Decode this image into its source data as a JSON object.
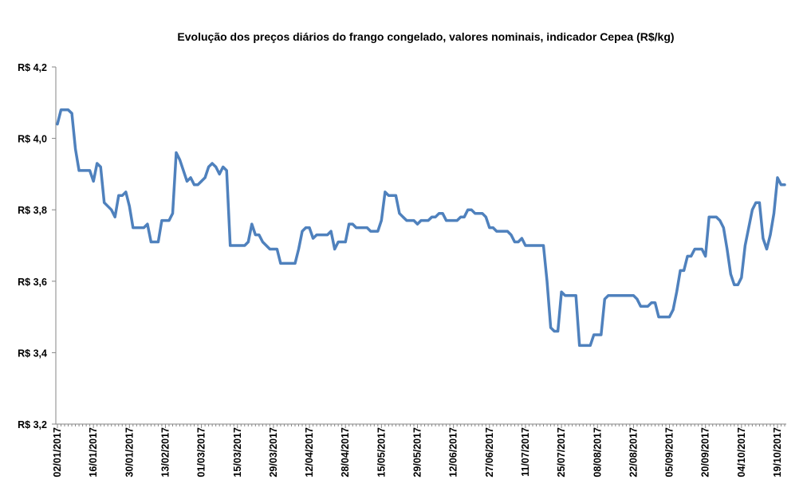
{
  "chart_data": {
    "type": "line",
    "title": "Evolução dos preços diários do frango congelado, valores nominais, indicador Cepea (R$/kg)",
    "xlabel": "",
    "ylabel": "",
    "ylim": [
      3.2,
      4.2
    ],
    "yticks": [
      "R$ 3,2",
      "R$ 3,4",
      "R$ 3,6",
      "R$ 3,8",
      "R$ 4,0",
      "R$ 4,2"
    ],
    "ytick_values": [
      3.2,
      3.4,
      3.6,
      3.8,
      4.0,
      4.2
    ],
    "xticks": [
      "02/01/2017",
      "16/01/2017",
      "30/01/2017",
      "13/02/2017",
      "01/03/2017",
      "15/03/2017",
      "29/03/2017",
      "12/04/2017",
      "28/04/2017",
      "15/05/2017",
      "29/05/2017",
      "12/06/2017",
      "27/06/2017",
      "11/07/2017",
      "25/07/2017",
      "08/08/2017",
      "22/08/2017",
      "05/09/2017",
      "20/09/2017",
      "04/10/2017",
      "19/10/2017"
    ],
    "xtick_every_n_points": 10,
    "x_note": "x = trading-day index from 02/01/2017",
    "grid": false,
    "legend": "none",
    "color": "#4f81bd",
    "series": [
      {
        "name": "Frango congelado (R$/kg)",
        "points": [
          [
            0,
            4.04
          ],
          [
            1,
            4.08
          ],
          [
            3,
            4.08
          ],
          [
            4,
            4.07
          ],
          [
            5,
            3.97
          ],
          [
            6,
            3.91
          ],
          [
            9,
            3.91
          ],
          [
            10,
            3.88
          ],
          [
            11,
            3.93
          ],
          [
            12,
            3.92
          ],
          [
            13,
            3.82
          ],
          [
            15,
            3.8
          ],
          [
            16,
            3.78
          ],
          [
            17,
            3.84
          ],
          [
            18,
            3.84
          ],
          [
            19,
            3.85
          ],
          [
            20,
            3.81
          ],
          [
            21,
            3.75
          ],
          [
            24,
            3.75
          ],
          [
            25,
            3.76
          ],
          [
            26,
            3.71
          ],
          [
            28,
            3.71
          ],
          [
            29,
            3.77
          ],
          [
            31,
            3.77
          ],
          [
            32,
            3.79
          ],
          [
            33,
            3.96
          ],
          [
            34,
            3.94
          ],
          [
            36,
            3.88
          ],
          [
            37,
            3.89
          ],
          [
            38,
            3.87
          ],
          [
            39,
            3.87
          ],
          [
            41,
            3.89
          ],
          [
            42,
            3.92
          ],
          [
            43,
            3.93
          ],
          [
            44,
            3.92
          ],
          [
            45,
            3.9
          ],
          [
            46,
            3.92
          ],
          [
            47,
            3.91
          ],
          [
            48,
            3.7
          ],
          [
            52,
            3.7
          ],
          [
            53,
            3.71
          ],
          [
            54,
            3.76
          ],
          [
            55,
            3.73
          ],
          [
            56,
            3.73
          ],
          [
            57,
            3.71
          ],
          [
            58,
            3.7
          ],
          [
            59,
            3.69
          ],
          [
            61,
            3.69
          ],
          [
            62,
            3.65
          ],
          [
            66,
            3.65
          ],
          [
            67,
            3.69
          ],
          [
            68,
            3.74
          ],
          [
            69,
            3.75
          ],
          [
            70,
            3.75
          ],
          [
            71,
            3.72
          ],
          [
            72,
            3.73
          ],
          [
            75,
            3.73
          ],
          [
            76,
            3.74
          ],
          [
            77,
            3.69
          ],
          [
            78,
            3.71
          ],
          [
            80,
            3.71
          ],
          [
            81,
            3.76
          ],
          [
            82,
            3.76
          ],
          [
            83,
            3.75
          ],
          [
            86,
            3.75
          ],
          [
            87,
            3.74
          ],
          [
            89,
            3.74
          ],
          [
            90,
            3.77
          ],
          [
            91,
            3.85
          ],
          [
            92,
            3.84
          ],
          [
            94,
            3.84
          ],
          [
            95,
            3.79
          ],
          [
            96,
            3.78
          ],
          [
            97,
            3.77
          ],
          [
            99,
            3.77
          ],
          [
            100,
            3.76
          ],
          [
            101,
            3.77
          ],
          [
            103,
            3.77
          ],
          [
            104,
            3.78
          ],
          [
            105,
            3.78
          ],
          [
            106,
            3.79
          ],
          [
            107,
            3.79
          ],
          [
            108,
            3.77
          ],
          [
            111,
            3.77
          ],
          [
            112,
            3.78
          ],
          [
            113,
            3.78
          ],
          [
            114,
            3.8
          ],
          [
            115,
            3.8
          ],
          [
            116,
            3.79
          ],
          [
            118,
            3.79
          ],
          [
            119,
            3.78
          ],
          [
            120,
            3.75
          ],
          [
            121,
            3.75
          ],
          [
            122,
            3.74
          ],
          [
            125,
            3.74
          ],
          [
            126,
            3.73
          ],
          [
            127,
            3.71
          ],
          [
            128,
            3.71
          ],
          [
            129,
            3.72
          ],
          [
            130,
            3.7
          ],
          [
            135,
            3.7
          ],
          [
            136,
            3.6
          ],
          [
            137,
            3.47
          ],
          [
            138,
            3.46
          ],
          [
            139,
            3.46
          ],
          [
            140,
            3.57
          ],
          [
            141,
            3.56
          ],
          [
            144,
            3.56
          ],
          [
            145,
            3.42
          ],
          [
            148,
            3.42
          ],
          [
            149,
            3.45
          ],
          [
            151,
            3.45
          ],
          [
            152,
            3.55
          ],
          [
            153,
            3.56
          ],
          [
            160,
            3.56
          ],
          [
            161,
            3.55
          ],
          [
            162,
            3.53
          ],
          [
            164,
            3.53
          ],
          [
            165,
            3.54
          ],
          [
            166,
            3.54
          ],
          [
            167,
            3.5
          ],
          [
            170,
            3.5
          ],
          [
            171,
            3.52
          ],
          [
            172,
            3.57
          ],
          [
            173,
            3.63
          ],
          [
            174,
            3.63
          ],
          [
            175,
            3.67
          ],
          [
            176,
            3.67
          ],
          [
            177,
            3.69
          ],
          [
            179,
            3.69
          ],
          [
            180,
            3.67
          ],
          [
            181,
            3.78
          ],
          [
            183,
            3.78
          ],
          [
            184,
            3.77
          ],
          [
            185,
            3.75
          ],
          [
            186,
            3.69
          ],
          [
            187,
            3.62
          ],
          [
            188,
            3.59
          ],
          [
            189,
            3.59
          ],
          [
            190,
            3.61
          ],
          [
            191,
            3.7
          ],
          [
            192,
            3.75
          ],
          [
            193,
            3.8
          ],
          [
            194,
            3.82
          ],
          [
            195,
            3.82
          ],
          [
            196,
            3.72
          ],
          [
            197,
            3.69
          ],
          [
            198,
            3.73
          ],
          [
            199,
            3.79
          ],
          [
            200,
            3.89
          ],
          [
            201,
            3.87
          ],
          [
            202,
            3.87
          ]
        ]
      }
    ]
  }
}
